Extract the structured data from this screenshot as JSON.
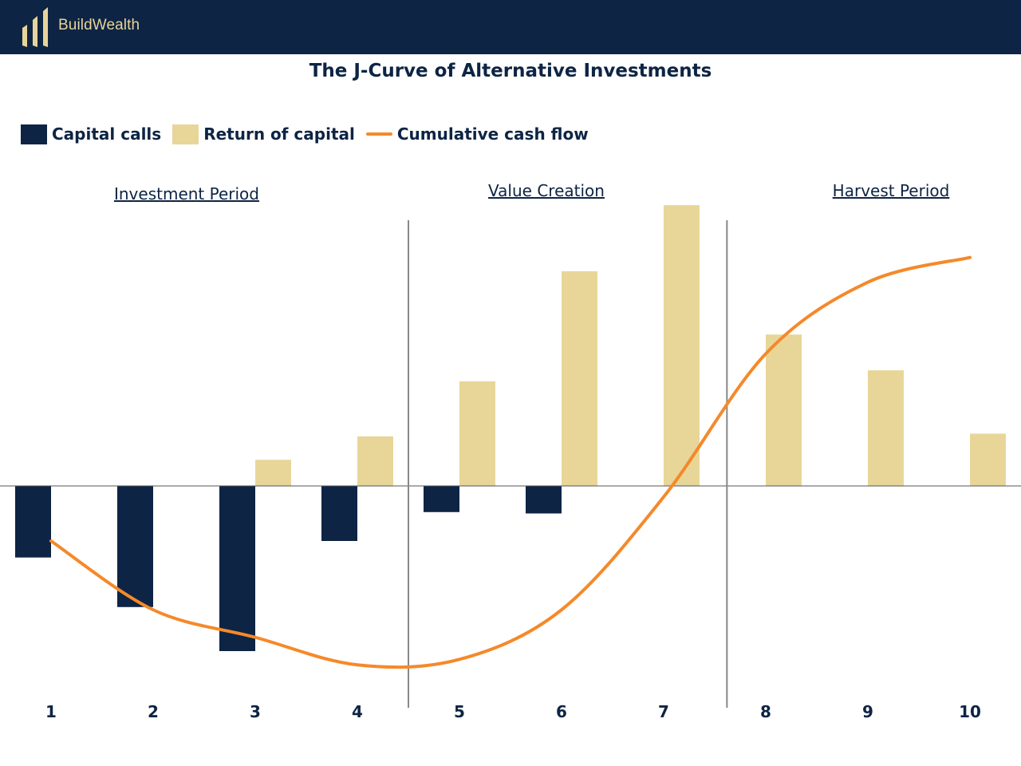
{
  "brand": {
    "name": "BuildWealth",
    "logo_icon": "bars-logo-icon",
    "color": "#e8d49a"
  },
  "chart_data": {
    "type": "bar",
    "title": "The J-Curve of Alternative Investments",
    "categories": [
      "1",
      "2",
      "3",
      "4",
      "5",
      "6",
      "7",
      "8",
      "9",
      "10"
    ],
    "series": [
      {
        "name": "Capital calls",
        "kind": "bar",
        "color": "#0d2444",
        "values": [
          -2.6,
          -4.4,
          -6.0,
          -2.0,
          -0.95,
          -1.0,
          0,
          0,
          0,
          0
        ]
      },
      {
        "name": "Return of capital",
        "kind": "bar",
        "color": "#e8d699",
        "values": [
          0,
          0,
          0.95,
          1.8,
          3.8,
          7.8,
          10.2,
          5.5,
          4.2,
          1.9
        ]
      },
      {
        "name": "Cumulative cash flow",
        "kind": "line",
        "color": "#f5892a",
        "values": [
          -2.0,
          -4.5,
          -5.5,
          -6.5,
          -6.3,
          -4.5,
          -0.4,
          4.8,
          7.4,
          8.3
        ]
      }
    ],
    "ylim": [
      -8,
      10.4
    ],
    "phases": [
      {
        "label": "Investment Period"
      },
      {
        "label": "Value Creation"
      },
      {
        "label": "Harvest Period"
      }
    ],
    "legend_position": "top-left",
    "grid": false
  }
}
